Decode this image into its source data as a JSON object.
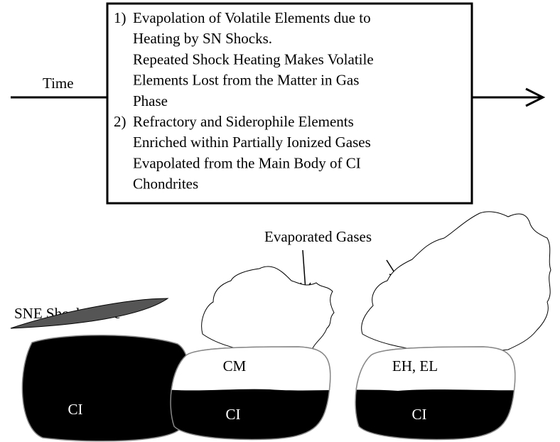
{
  "time_label": "Time",
  "box": {
    "items": [
      {
        "number": "1)",
        "lines": [
          "Evapolation of Volatile Elements due to",
          "Heating by SN Shocks.",
          "Repeated Shock Heating Makes Volatile",
          "Elements Lost from the Matter in Gas",
          "Phase"
        ]
      },
      {
        "number": "2)",
        "lines": [
          "Refractory and Siderophile Elements",
          "Enriched within Partially Ionized Gases",
          "Evapolated from the Main Body of CI",
          "Chondrites"
        ]
      }
    ]
  },
  "evaporated_label": "Evaporated Gases",
  "shock_label": "SNE Shock Wave",
  "stages": [
    {
      "labels": [
        "CI"
      ]
    },
    {
      "labels": [
        "CM",
        "CI"
      ]
    },
    {
      "labels": [
        "EH, EL",
        "CI"
      ]
    }
  ]
}
